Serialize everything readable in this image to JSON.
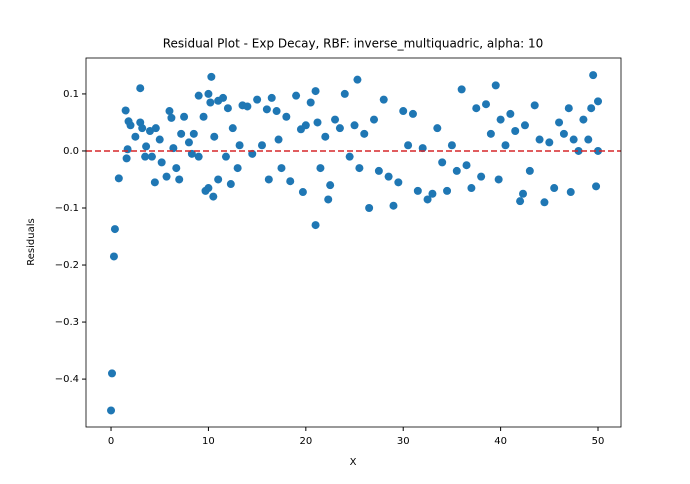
{
  "chart_data": {
    "type": "scatter",
    "title": "Residual Plot - Exp Decay, RBF: inverse_multiquadric, alpha: 10",
    "xlabel": "X",
    "ylabel": "Residuals",
    "color": "#1f77b4",
    "x": [
      0,
      0.1,
      0.3,
      0.4,
      0.8,
      1.5,
      1.6,
      1.7,
      1.8,
      2,
      2.5,
      3,
      3,
      3.2,
      3.5,
      3.6,
      4,
      4.2,
      4.5,
      4.6,
      5,
      5.2,
      5.7,
      6,
      6.2,
      6.4,
      6.7,
      7,
      7.2,
      7.5,
      8,
      8.3,
      8.5,
      9,
      9,
      9.5,
      9.7,
      10,
      10,
      10.2,
      10.3,
      10.5,
      10.6,
      11,
      11,
      11.5,
      11.8,
      12,
      12.3,
      12.5,
      13,
      13.2,
      13.5,
      14,
      14.5,
      15,
      15.5,
      16,
      16.2,
      16.5,
      17,
      17.2,
      17.5,
      18,
      18.4,
      19,
      19.5,
      19.7,
      20,
      20.5,
      21,
      21,
      21.2,
      21.5,
      22,
      22.3,
      22.5,
      23,
      23.5,
      24,
      24.5,
      25,
      25.3,
      25.5,
      26,
      26.5,
      27,
      27.5,
      28,
      28.5,
      29,
      29.5,
      30,
      30.5,
      31,
      31.5,
      32,
      32.5,
      33,
      33.5,
      34,
      34.5,
      35,
      35.5,
      36,
      36.5,
      37,
      37.5,
      38,
      38.5,
      39,
      39.5,
      39.8,
      40,
      40.5,
      41,
      41.5,
      42,
      42.3,
      42.5,
      43,
      43.5,
      44,
      44.5,
      45,
      45.5,
      46,
      46.5,
      47,
      47.2,
      47.5,
      48,
      48.5,
      49,
      49.3,
      49.5,
      49.8,
      50,
      50
    ],
    "values": [
      -0.455,
      -0.39,
      -0.185,
      -0.137,
      -0.048,
      0.071,
      -0.013,
      0.003,
      0.052,
      0.045,
      0.025,
      0.11,
      0.05,
      0.04,
      -0.01,
      0.008,
      0.035,
      -0.01,
      -0.055,
      0.04,
      0.02,
      -0.02,
      -0.045,
      0.07,
      0.058,
      0.005,
      -0.03,
      -0.05,
      0.03,
      0.06,
      0.015,
      -0.005,
      0.03,
      0.097,
      -0.01,
      0.06,
      -0.07,
      0.1,
      -0.065,
      0.085,
      0.13,
      -0.08,
      0.025,
      0.088,
      -0.05,
      0.093,
      -0.01,
      0.075,
      -0.058,
      0.04,
      -0.03,
      0.01,
      0.08,
      0.078,
      -0.005,
      0.09,
      0.01,
      0.073,
      -0.05,
      0.093,
      0.07,
      0.02,
      -0.03,
      0.06,
      -0.053,
      0.097,
      0.038,
      -0.072,
      0.045,
      0.085,
      -0.13,
      0.105,
      0.05,
      -0.03,
      0.025,
      -0.085,
      -0.06,
      0.055,
      0.04,
      0.1,
      -0.01,
      0.045,
      0.125,
      -0.03,
      0.03,
      -0.1,
      0.055,
      -0.035,
      0.09,
      -0.045,
      -0.096,
      -0.055,
      0.07,
      0.01,
      0.065,
      -0.07,
      0.005,
      -0.085,
      -0.075,
      0.04,
      -0.02,
      -0.07,
      0.01,
      -0.035,
      0.108,
      -0.025,
      -0.065,
      0.075,
      -0.045,
      0.082,
      0.03,
      0.115,
      -0.05,
      0.055,
      0.01,
      0.065,
      0.035,
      -0.088,
      -0.075,
      0.045,
      -0.035,
      0.08,
      0.02,
      -0.09,
      0.015,
      -0.065,
      0.05,
      0.03,
      0.075,
      -0.072,
      0.02,
      0,
      0.055,
      0.02,
      0.075,
      0.133,
      -0.062,
      0.087,
      0
    ],
    "xlim": [
      -2.57,
      52.36
    ],
    "ylim": [
      -0.484,
      0.163
    ],
    "xticks": [
      0,
      10,
      20,
      30,
      40,
      50
    ],
    "yticks": [
      {
        "value": -0.4,
        "label": "−0.4"
      },
      {
        "value": -0.3,
        "label": "−0.3"
      },
      {
        "value": -0.2,
        "label": "−0.2"
      },
      {
        "value": -0.1,
        "label": "−0.1"
      },
      {
        "value": 0,
        "label": "0.0"
      },
      {
        "value": 0.1,
        "label": "0.1"
      }
    ],
    "reference_line": {
      "y": 0,
      "color": "#d62728"
    }
  }
}
